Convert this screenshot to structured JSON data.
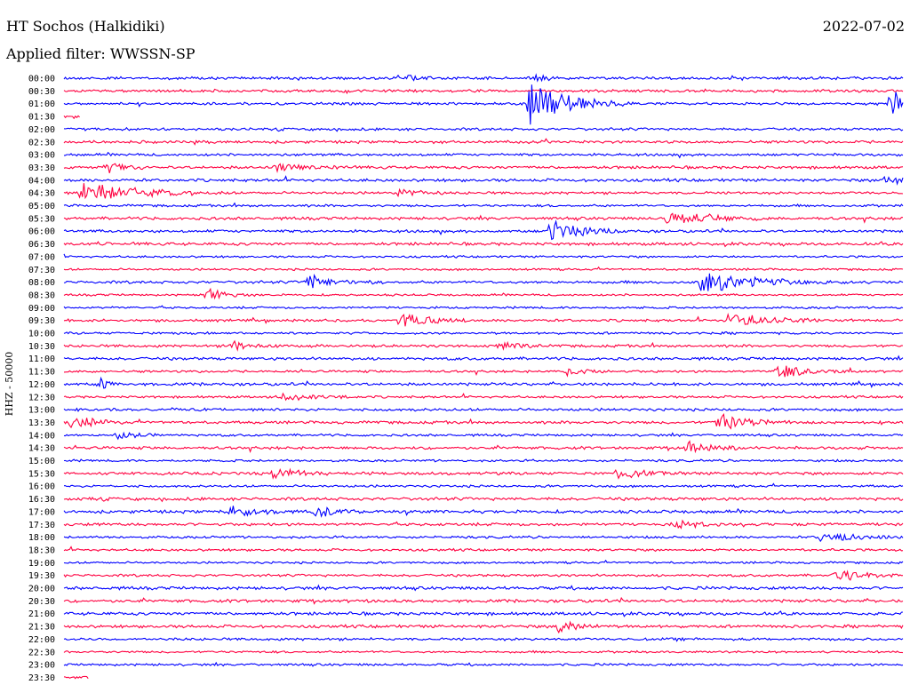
{
  "header": {
    "station": "HT Sochos (Halkidiki)",
    "date": "2022-07-02",
    "filter": "Applied filter: WWSSN-SP"
  },
  "chart_data": {
    "type": "line",
    "title": "HT Sochos (Halkidiki)",
    "ylabel": "HHZ - 50000",
    "x_range_minutes": [
      0,
      30
    ],
    "row_labels": [
      "00:00",
      "00:30",
      "01:00",
      "01:30",
      "02:00",
      "02:30",
      "03:00",
      "03:30",
      "04:00",
      "04:30",
      "05:00",
      "05:30",
      "06:00",
      "06:30",
      "07:00",
      "07:30",
      "08:00",
      "08:30",
      "09:00",
      "09:30",
      "10:00",
      "10:30",
      "11:00",
      "11:30",
      "12:00",
      "12:30",
      "13:00",
      "13:30",
      "14:00",
      "14:30",
      "15:00",
      "15:30",
      "16:00",
      "16:30",
      "17:00",
      "17:30",
      "18:00",
      "18:30",
      "19:00",
      "19:30",
      "20:00",
      "20:30",
      "21:00",
      "21:30",
      "22:00",
      "22:30",
      "23:00",
      "23:30"
    ],
    "colors": [
      "#0000ff",
      "#ff0040"
    ],
    "rows_partial": {
      "01:30": 0.02,
      "23:30": 0.03
    },
    "events": [
      {
        "row": "00:00",
        "x": 0.4,
        "amp": 4,
        "dur": 0.02
      },
      {
        "row": "00:00",
        "x": 0.56,
        "amp": 6,
        "dur": 0.01
      },
      {
        "row": "01:00",
        "x": 0.555,
        "amp": 26,
        "dur": 0.04
      },
      {
        "row": "01:00",
        "x": 0.985,
        "amp": 14,
        "dur": 0.03
      },
      {
        "row": "03:30",
        "x": 0.05,
        "amp": 6,
        "dur": 0.02
      },
      {
        "row": "03:30",
        "x": 0.25,
        "amp": 5,
        "dur": 0.03
      },
      {
        "row": "04:00",
        "x": 0.98,
        "amp": 6,
        "dur": 0.05
      },
      {
        "row": "04:30",
        "x": 0.02,
        "amp": 12,
        "dur": 0.06
      },
      {
        "row": "04:30",
        "x": 0.4,
        "amp": 5,
        "dur": 0.02
      },
      {
        "row": "05:30",
        "x": 0.72,
        "amp": 8,
        "dur": 0.04
      },
      {
        "row": "06:00",
        "x": 0.58,
        "amp": 14,
        "dur": 0.03
      },
      {
        "row": "08:00",
        "x": 0.29,
        "amp": 8,
        "dur": 0.03
      },
      {
        "row": "08:00",
        "x": 0.76,
        "amp": 11,
        "dur": 0.06
      },
      {
        "row": "08:30",
        "x": 0.17,
        "amp": 7,
        "dur": 0.02
      },
      {
        "row": "09:30",
        "x": 0.4,
        "amp": 8,
        "dur": 0.03
      },
      {
        "row": "09:30",
        "x": 0.79,
        "amp": 9,
        "dur": 0.04
      },
      {
        "row": "10:30",
        "x": 0.2,
        "amp": 5,
        "dur": 0.02
      },
      {
        "row": "10:30",
        "x": 0.52,
        "amp": 5,
        "dur": 0.02
      },
      {
        "row": "11:30",
        "x": 0.6,
        "amp": 6,
        "dur": 0.02
      },
      {
        "row": "11:30",
        "x": 0.85,
        "amp": 9,
        "dur": 0.03
      },
      {
        "row": "12:00",
        "x": 0.04,
        "amp": 8,
        "dur": 0.01
      },
      {
        "row": "12:30",
        "x": 0.26,
        "amp": 5,
        "dur": 0.03
      },
      {
        "row": "13:30",
        "x": 0.01,
        "amp": 10,
        "dur": 0.02
      },
      {
        "row": "13:30",
        "x": 0.78,
        "amp": 9,
        "dur": 0.03
      },
      {
        "row": "14:00",
        "x": 0.06,
        "amp": 9,
        "dur": 0.02
      },
      {
        "row": "14:30",
        "x": 0.74,
        "amp": 6,
        "dur": 0.03
      },
      {
        "row": "15:30",
        "x": 0.25,
        "amp": 6,
        "dur": 0.03
      },
      {
        "row": "15:30",
        "x": 0.66,
        "amp": 5,
        "dur": 0.03
      },
      {
        "row": "17:00",
        "x": 0.2,
        "amp": 9,
        "dur": 0.02
      },
      {
        "row": "17:00",
        "x": 0.3,
        "amp": 6,
        "dur": 0.02
      },
      {
        "row": "17:30",
        "x": 0.73,
        "amp": 6,
        "dur": 0.02
      },
      {
        "row": "18:00",
        "x": 0.9,
        "amp": 6,
        "dur": 0.04
      },
      {
        "row": "19:30",
        "x": 0.92,
        "amp": 5,
        "dur": 0.04
      },
      {
        "row": "21:30",
        "x": 0.59,
        "amp": 8,
        "dur": 0.02
      }
    ]
  }
}
